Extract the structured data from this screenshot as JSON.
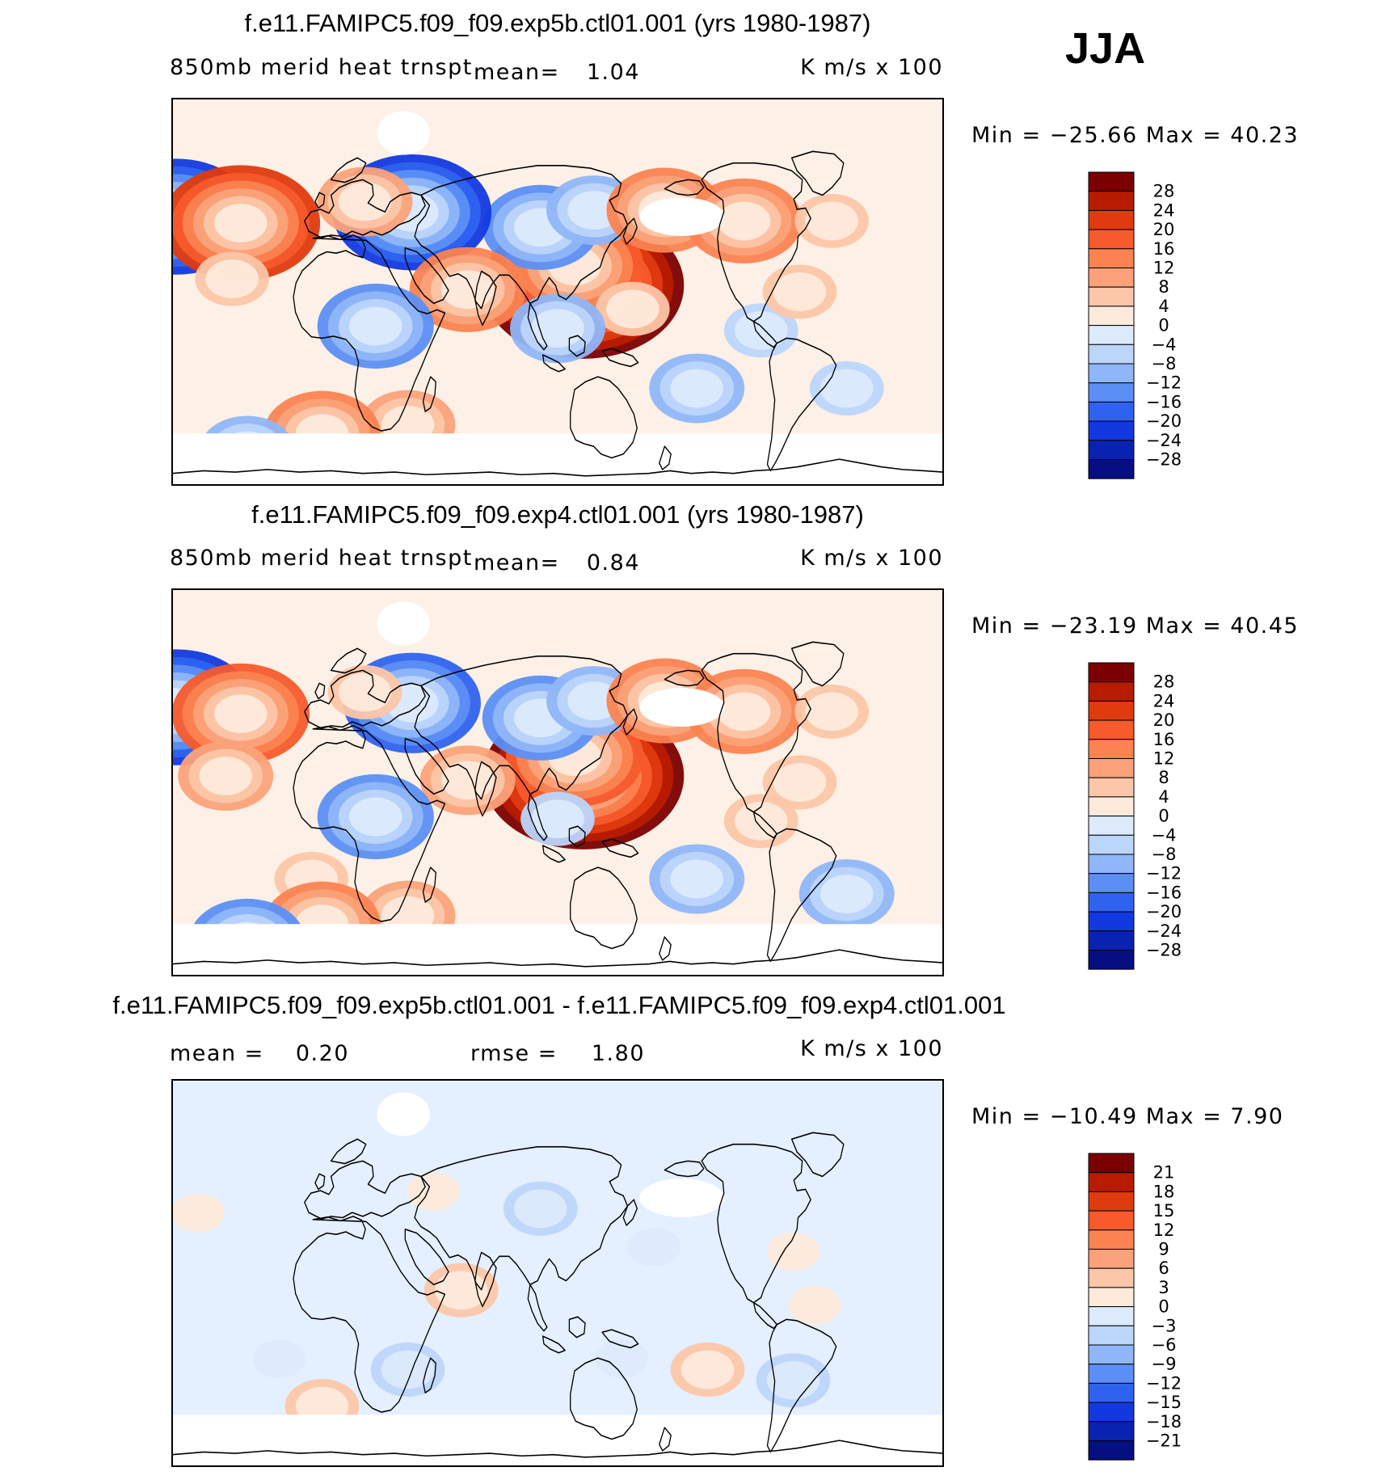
{
  "season": "JJA",
  "field_label": "850mb  merid  heat  trnspt",
  "units": "K  m/s  x  100",
  "panels": [
    {
      "title": "f.e11.FAMIPC5.f09_f09.exp5b.ctl01.001 (yrs 1980-1987)",
      "mean_label": "mean=",
      "mean_value": "1.04",
      "minmax_text": "Min  =  −25.66  Max  =     40.23",
      "colorbar_levels": [
        "28",
        "24",
        "20",
        "16",
        "12",
        "8",
        "4",
        "0",
        "−4",
        "−8",
        "−12",
        "−16",
        "−20",
        "−24",
        "−28"
      ]
    },
    {
      "title": "f.e11.FAMIPC5.f09_f09.exp4.ctl01.001 (yrs 1980-1987)",
      "mean_label": "mean=",
      "mean_value": "0.84",
      "minmax_text": "Min  =  −23.19  Max  =     40.45",
      "colorbar_levels": [
        "28",
        "24",
        "20",
        "16",
        "12",
        "8",
        "4",
        "0",
        "−4",
        "−8",
        "−12",
        "−16",
        "−20",
        "−24",
        "−28"
      ]
    },
    {
      "title": "f.e11.FAMIPC5.f09_f09.exp5b.ctl01.001 - f.e11.FAMIPC5.f09_f09.exp4.ctl01.001",
      "mean_label": "mean  =",
      "mean_value": "0.20",
      "rmse_label": "rmse  =",
      "rmse_value": "1.80",
      "minmax_text": "Min  =  −10.49  Max  =      7.90",
      "colorbar_levels": [
        "21",
        "18",
        "15",
        "12",
        "9",
        "6",
        "3",
        "0",
        "−3",
        "−6",
        "−9",
        "−12",
        "−15",
        "−18",
        "−21"
      ]
    }
  ],
  "colors": {
    "palette": [
      "#7b0000",
      "#b81c00",
      "#e03a0f",
      "#f75a2c",
      "#fb8351",
      "#fba27a",
      "#fcc6a8",
      "#fdeadb",
      "#dceafc",
      "#bcd5fb",
      "#8fb6f8",
      "#5c8ff5",
      "#2f63ef",
      "#1239e0",
      "#0a22b0",
      "#050f80"
    ],
    "land_missing": "#ffffff",
    "coastline": "#000000"
  },
  "chart_data": [
    {
      "type": "heatmap",
      "title": "f.e11.FAMIPC5.f09_f09.exp5b.ctl01.001 (yrs 1980-1987)",
      "variable": "850mb  merid  heat  trnspt",
      "units": "K  m/s  x  100",
      "season": "JJA",
      "mean": 1.04,
      "min": -25.66,
      "max": 40.23,
      "contour_levels": [
        -28,
        -24,
        -20,
        -16,
        -12,
        -8,
        -4,
        0,
        4,
        8,
        12,
        16,
        20,
        24,
        28
      ],
      "features": [
        {
          "lon": 42,
          "lat": 3,
          "value": 32
        },
        {
          "lon": 38,
          "lat": 12,
          "value": 20
        },
        {
          "lon": 22,
          "lat": 30,
          "value": -14
        },
        {
          "lon": 47,
          "lat": 38,
          "value": -12
        },
        {
          "lon": 80,
          "lat": 38,
          "value": 16
        },
        {
          "lon": 117,
          "lat": 33,
          "value": 14
        },
        {
          "lon": 158,
          "lat": 33,
          "value": 6
        },
        {
          "lon": -148,
          "lat": 35,
          "value": -22
        },
        {
          "lon": -118,
          "lat": 32,
          "value": 22
        },
        {
          "lon": -38,
          "lat": 37,
          "value": -22
        },
        {
          "lon": -60,
          "lat": 42,
          "value": 9
        },
        {
          "lon": -12,
          "lat": 1,
          "value": 14
        },
        {
          "lon": -122,
          "lat": 6,
          "value": 8
        },
        {
          "lon": -55,
          "lat": -16,
          "value": -15
        },
        {
          "lon": 65,
          "lat": -8,
          "value": 6
        },
        {
          "lon": 30,
          "lat": -17,
          "value": -10
        },
        {
          "lon": 125,
          "lat": -18,
          "value": -8
        },
        {
          "lon": 95,
          "lat": -45,
          "value": -10
        },
        {
          "lon": 165,
          "lat": -45,
          "value": -6
        },
        {
          "lon": -40,
          "lat": -62,
          "value": 12
        },
        {
          "lon": -80,
          "lat": -66,
          "value": 14
        },
        {
          "lon": -115,
          "lat": -74,
          "value": -10
        },
        {
          "lon": 143,
          "lat": 0,
          "value": 8
        }
      ]
    },
    {
      "type": "heatmap",
      "title": "f.e11.FAMIPC5.f09_f09.exp4.ctl01.001 (yrs 1980-1987)",
      "variable": "850mb  merid  heat  trnspt",
      "units": "K  m/s  x  100",
      "season": "JJA",
      "mean": 0.84,
      "min": -23.19,
      "max": 40.45,
      "contour_levels": [
        -28,
        -24,
        -20,
        -16,
        -12,
        -8,
        -4,
        0,
        4,
        8,
        12,
        16,
        20,
        24,
        28
      ],
      "features": [
        {
          "lon": 42,
          "lat": 3,
          "value": 30
        },
        {
          "lon": 38,
          "lat": 12,
          "value": 18
        },
        {
          "lon": 22,
          "lat": 30,
          "value": -13
        },
        {
          "lon": 47,
          "lat": 38,
          "value": -12
        },
        {
          "lon": 80,
          "lat": 38,
          "value": 16
        },
        {
          "lon": 117,
          "lat": 33,
          "value": 16
        },
        {
          "lon": 158,
          "lat": 33,
          "value": 8
        },
        {
          "lon": -148,
          "lat": 35,
          "value": -22
        },
        {
          "lon": -118,
          "lat": 32,
          "value": 20
        },
        {
          "lon": -38,
          "lat": 37,
          "value": -20
        },
        {
          "lon": -60,
          "lat": 42,
          "value": 8
        },
        {
          "lon": -12,
          "lat": 1,
          "value": 12
        },
        {
          "lon": -125,
          "lat": 3,
          "value": 10
        },
        {
          "lon": -55,
          "lat": -16,
          "value": -16
        },
        {
          "lon": 30,
          "lat": -17,
          "value": -8
        },
        {
          "lon": 125,
          "lat": -18,
          "value": 6
        },
        {
          "lon": 95,
          "lat": -45,
          "value": -12
        },
        {
          "lon": 165,
          "lat": -52,
          "value": -10
        },
        {
          "lon": -85,
          "lat": -45,
          "value": 8
        },
        {
          "lon": -40,
          "lat": -62,
          "value": 12
        },
        {
          "lon": -80,
          "lat": -66,
          "value": 14
        },
        {
          "lon": -115,
          "lat": -74,
          "value": -14
        },
        {
          "lon": 143,
          "lat": 0,
          "value": 8
        }
      ]
    },
    {
      "type": "heatmap",
      "title": "f.e11.FAMIPC5.f09_f09.exp5b.ctl01.001 - f.e11.FAMIPC5.f09_f09.exp4.ctl01.001",
      "units": "K  m/s  x  100",
      "season": "JJA",
      "mean": 0.2,
      "rmse": 1.8,
      "min": -10.49,
      "max": 7.9,
      "contour_levels": [
        -21,
        -18,
        -15,
        -12,
        -9,
        -6,
        -3,
        0,
        3,
        6,
        9,
        12,
        15,
        18,
        21
      ],
      "features": [
        {
          "lon": 22,
          "lat": 30,
          "value": -4
        },
        {
          "lon": 75,
          "lat": 12,
          "value": -3
        },
        {
          "lon": -138,
          "lat": 28,
          "value": 3
        },
        {
          "lon": -28,
          "lat": 38,
          "value": 3
        },
        {
          "lon": -15,
          "lat": -8,
          "value": 4
        },
        {
          "lon": 100,
          "lat": -45,
          "value": 4
        },
        {
          "lon": 140,
          "lat": -50,
          "value": -4
        },
        {
          "lon": -80,
          "lat": -62,
          "value": 5
        },
        {
          "lon": -100,
          "lat": -40,
          "value": -3
        },
        {
          "lon": 60,
          "lat": -40,
          "value": -3
        },
        {
          "lon": -40,
          "lat": -45,
          "value": -4
        },
        {
          "lon": 150,
          "lat": -15,
          "value": 3
        },
        {
          "lon": 140,
          "lat": 10,
          "value": 3
        }
      ]
    }
  ]
}
